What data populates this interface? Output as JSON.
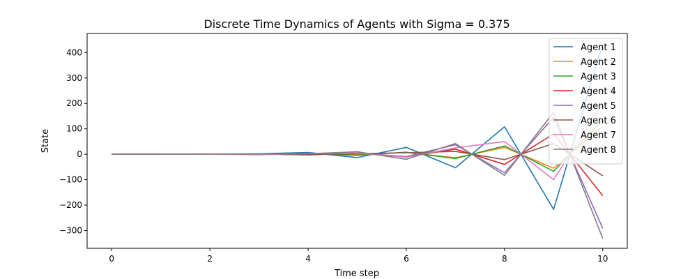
{
  "chart_data": {
    "type": "line",
    "title": "Discrete Time Dynamics of Agents with Sigma = 0.375",
    "xlabel": "Time step",
    "ylabel": "State",
    "xlim": [
      -0.5,
      10.5
    ],
    "ylim": [
      -370,
      475
    ],
    "xticks": [
      0,
      2,
      4,
      6,
      8,
      10
    ],
    "yticks": [
      -300,
      -200,
      -100,
      0,
      100,
      200,
      300,
      400
    ],
    "ytick_labels": [
      "−300",
      "−200",
      "−100",
      "0",
      "100",
      "200",
      "300",
      "400"
    ],
    "grid": false,
    "legend_position": "top-right",
    "x": [
      0,
      1,
      2,
      3,
      4,
      5,
      6,
      7,
      8,
      9,
      10
    ],
    "series": [
      {
        "name": "Agent 1",
        "color": "#1f77b4",
        "values": [
          1,
          1,
          1,
          2,
          7,
          -13,
          27,
          -53,
          108,
          -217,
          435
        ]
      },
      {
        "name": "Agent 2",
        "color": "#ff7f0e",
        "values": [
          0,
          0,
          1,
          1,
          2,
          -2,
          7,
          -14,
          27,
          -55,
          110
        ]
      },
      {
        "name": "Agent 3",
        "color": "#2ca02c",
        "values": [
          0,
          0,
          0,
          1,
          2,
          -4,
          8,
          -17,
          33,
          -67,
          135
        ]
      },
      {
        "name": "Agent 4",
        "color": "#d62728",
        "values": [
          0,
          0,
          0,
          1,
          -3,
          5,
          -10,
          20,
          -40,
          80,
          -163
        ]
      },
      {
        "name": "Agent 5",
        "color": "#9467bd",
        "values": [
          0,
          0,
          0,
          1,
          -2,
          4,
          -9,
          37,
          -73,
          145,
          -292
        ]
      },
      {
        "name": "Agent 6",
        "color": "#8c564b",
        "values": [
          0,
          0,
          1,
          1,
          -1,
          2,
          6,
          11,
          -21,
          42,
          -85
        ]
      },
      {
        "name": "Agent 7",
        "color": "#e377c2",
        "values": [
          0,
          0,
          0,
          -2,
          3,
          5,
          -12,
          25,
          50,
          -100,
          200
        ]
      },
      {
        "name": "Agent 8",
        "color": "#7f7f7f",
        "values": [
          0,
          0,
          1,
          1,
          2,
          10,
          -20,
          42,
          -83,
          165,
          -332
        ]
      }
    ]
  }
}
